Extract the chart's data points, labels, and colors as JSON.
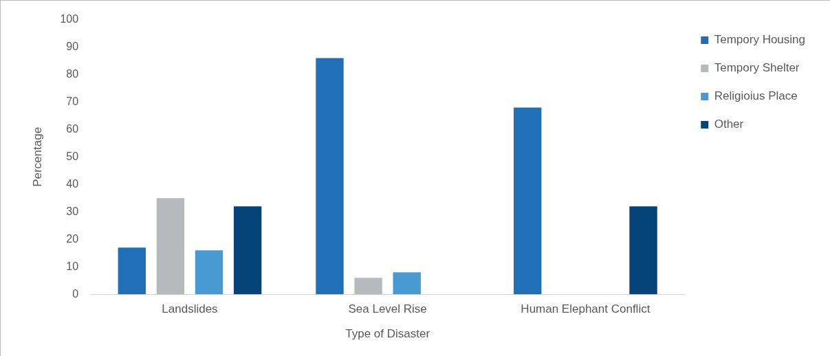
{
  "chart_data": {
    "type": "bar",
    "xlabel": "Type of Disaster",
    "ylabel": "Percentage",
    "categories": [
      "Landslides",
      "Sea Level Rise",
      "Human Elephant Conflict"
    ],
    "series": [
      {
        "name": "Tempory Housing",
        "color": "#1f70b8",
        "values": [
          17,
          86,
          68
        ]
      },
      {
        "name": "Tempory Shelter",
        "color": "#b8b9bc",
        "values": [
          35,
          6,
          null
        ]
      },
      {
        "name": "Religioius Place",
        "color": "#479ad2",
        "values": [
          16,
          8,
          null
        ]
      },
      {
        "name": "Other",
        "color": "#044479",
        "values": [
          32,
          null,
          32
        ]
      }
    ],
    "ylim": [
      0,
      100
    ],
    "yticks": [
      0,
      10,
      20,
      30,
      40,
      50,
      60,
      70,
      80,
      90,
      100
    ],
    "grid": false,
    "legend": "top right"
  }
}
